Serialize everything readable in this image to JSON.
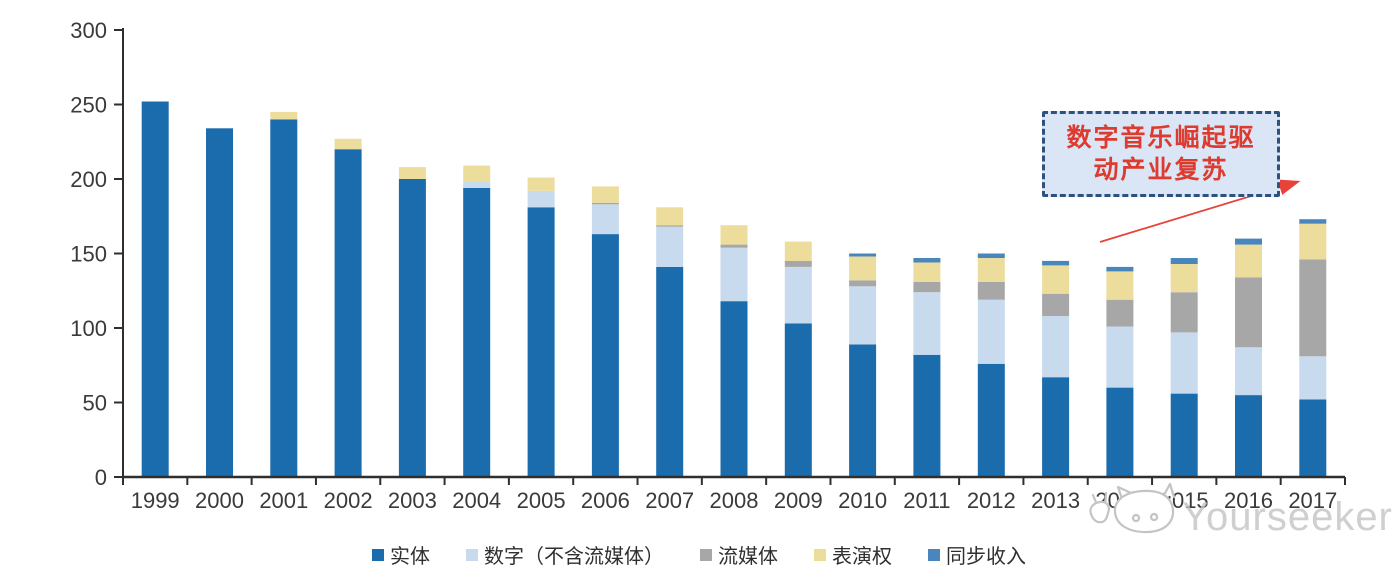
{
  "chart_data": {
    "type": "bar",
    "stacked": true,
    "title": "",
    "xlabel": "",
    "ylabel": "",
    "categories": [
      "1999",
      "2000",
      "2001",
      "2002",
      "2003",
      "2004",
      "2005",
      "2006",
      "2007",
      "2008",
      "2009",
      "2010",
      "2011",
      "2012",
      "2013",
      "2014",
      "2015",
      "2016",
      "2017"
    ],
    "series": [
      {
        "name": "实体",
        "color": "#1B6CAD",
        "values": [
          252,
          234,
          240,
          220,
          200,
          194,
          181,
          163,
          141,
          118,
          103,
          89,
          82,
          76,
          67,
          60,
          56,
          55,
          52
        ]
      },
      {
        "name": "数字（不含流媒体）",
        "color": "#C7DAEE",
        "values": [
          0,
          0,
          0,
          0,
          0,
          4,
          11,
          20,
          27,
          36,
          38,
          39,
          42,
          43,
          41,
          41,
          41,
          32,
          29
        ]
      },
      {
        "name": "流媒体",
        "color": "#A7A7A7",
        "values": [
          0,
          0,
          0,
          0,
          0,
          0,
          0,
          1,
          1,
          2,
          4,
          4,
          7,
          12,
          15,
          18,
          27,
          47,
          65
        ]
      },
      {
        "name": "表演权",
        "color": "#EDDD9C",
        "values": [
          0,
          0,
          5,
          7,
          8,
          11,
          9,
          11,
          12,
          13,
          13,
          16,
          13,
          16,
          19,
          19,
          19,
          22,
          24
        ]
      },
      {
        "name": "同步收入",
        "color": "#4A86BE",
        "values": [
          0,
          0,
          0,
          0,
          0,
          0,
          0,
          0,
          0,
          0,
          0,
          2,
          3,
          3,
          3,
          3,
          4,
          4,
          3
        ]
      }
    ],
    "ylim": [
      0,
      300
    ],
    "yticks": [
      0,
      50,
      100,
      150,
      200,
      250,
      300
    ],
    "grid": false,
    "legend_position": "bottom"
  },
  "annotation": {
    "line1": "数字音乐崛起驱",
    "line2": "动产业复苏",
    "text_color": "#DD3B2F",
    "box_fill": "#DAE6F5",
    "box_border": "#2F5180",
    "arrow_color": "#E8433B"
  },
  "watermark": {
    "text": "Yourseeker",
    "color": "#C4C4C4",
    "logo": "yourseeker-cat-logo-icon"
  },
  "axis": {
    "line_color": "#2F2F2F",
    "label_color": "#3A3A3A"
  }
}
